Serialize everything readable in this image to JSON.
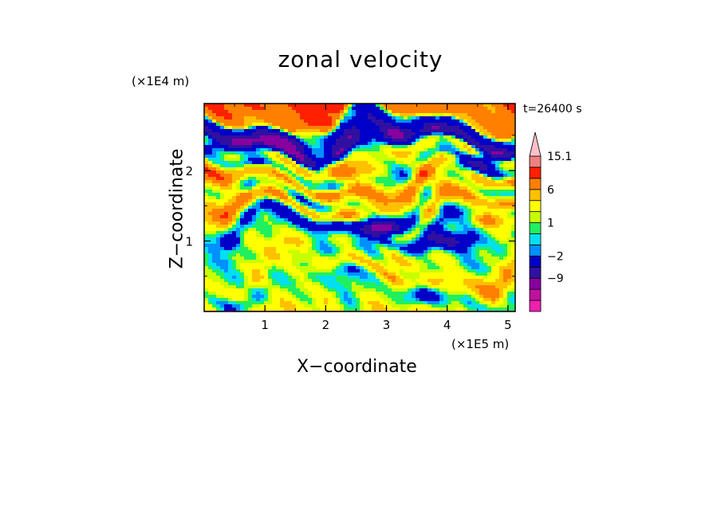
{
  "chart_data": {
    "type": "heatmap",
    "title": "zonal velocity",
    "xlabel": "X−coordinate",
    "ylabel": "Z−coordinate",
    "x_unit": "(×1E5 m)",
    "y_unit": "(×1E4 m)",
    "annotation": "t=26400 s",
    "xlim": [
      0,
      5.12
    ],
    "ylim": [
      0,
      2.95
    ],
    "x_ticks": [
      "1",
      "2",
      "3",
      "4",
      "5"
    ],
    "x_tick_values": [
      1,
      2,
      3,
      4,
      5
    ],
    "y_ticks": [
      "1",
      "2"
    ],
    "y_tick_values": [
      1,
      2
    ],
    "colorbar": {
      "levels": [
        -15,
        -12,
        -9,
        -6,
        -2,
        -1,
        0,
        1,
        2,
        4,
        6,
        9,
        12,
        15.1
      ],
      "labels": [
        "15.1",
        "6",
        "1",
        "−2",
        "−9"
      ],
      "label_values": [
        15.1,
        6,
        1,
        -2,
        -9
      ],
      "colors": [
        "#f020b0",
        "#c010a0",
        "#8800a0",
        "#3010a0",
        "#0000c8",
        "#0090ff",
        "#00e0f0",
        "#20f060",
        "#c8ff00",
        "#ffff00",
        "#ffc000",
        "#ff8000",
        "#ff2000",
        "#f08080",
        "#ffc0c8"
      ],
      "extend_top": true
    },
    "bands": [
      {
        "z": 2.78,
        "value": 8
      },
      {
        "z": 2.6,
        "value": -3
      },
      {
        "z": 2.42,
        "value": -8
      },
      {
        "z": 2.22,
        "value": 4
      },
      {
        "z": 2.0,
        "value": -1
      },
      {
        "z": 1.82,
        "value": 7
      },
      {
        "z": 1.6,
        "value": 0.5
      },
      {
        "z": 1.42,
        "value": 6
      },
      {
        "z": 1.2,
        "value": -3
      },
      {
        "z": 0.98,
        "value": 2
      },
      {
        "z": 0.78,
        "value": 1
      },
      {
        "z": 0.55,
        "value": 4
      },
      {
        "z": 0.32,
        "value": -0.5
      },
      {
        "z": 0.1,
        "value": 2
      }
    ],
    "features": [
      {
        "x": 1.2,
        "z": 2.4,
        "value": -12
      },
      {
        "x": 0.4,
        "z": 2.35,
        "value": -10
      },
      {
        "x": 2.2,
        "z": 2.45,
        "value": -9
      },
      {
        "x": 3.2,
        "z": 2.5,
        "value": -10
      },
      {
        "x": 4.4,
        "z": 2.1,
        "value": -8
      },
      {
        "x": 3.0,
        "z": 1.2,
        "value": -12
      },
      {
        "x": 4.0,
        "z": 1.0,
        "value": -10
      },
      {
        "x": 4.7,
        "z": 1.3,
        "value": 8
      },
      {
        "x": 2.4,
        "z": 2.0,
        "value": 8
      },
      {
        "x": 0.4,
        "z": 0.7,
        "value": -1
      },
      {
        "x": 1.8,
        "z": 0.4,
        "value": -0.5
      },
      {
        "x": 4.2,
        "z": 0.35,
        "value": 6
      },
      {
        "x": 3.6,
        "z": 0.2,
        "value": -4
      },
      {
        "x": 2.9,
        "z": 1.45,
        "value": 6
      },
      {
        "x": 1.5,
        "z": 1.0,
        "value": 3
      }
    ]
  }
}
